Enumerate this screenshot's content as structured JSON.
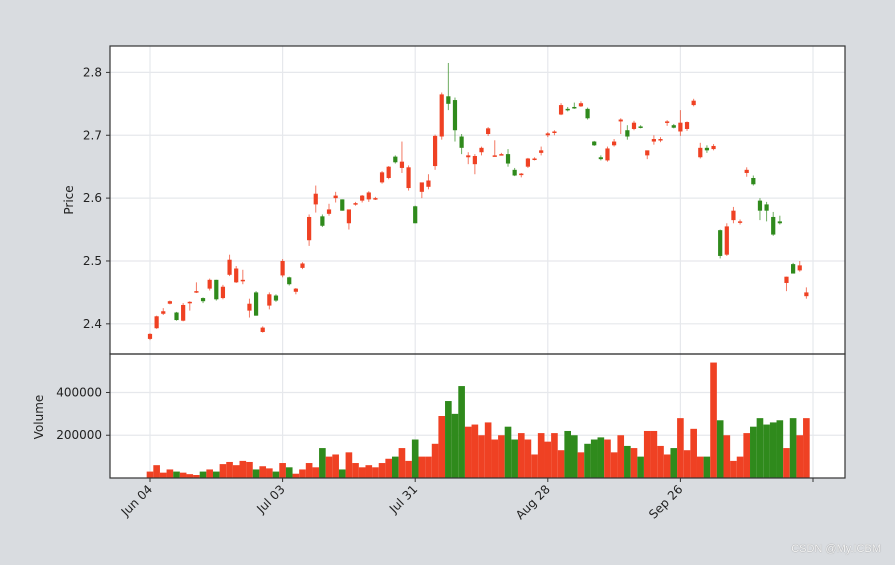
{
  "watermark": "CSDN @My.ICBM",
  "chart_data": {
    "type": "candlestick",
    "title": "",
    "panels": [
      {
        "name": "price",
        "ylabel": "Price",
        "yticks": [
          2.4,
          2.5,
          2.6,
          2.7,
          2.8
        ],
        "ylim": [
          2.352,
          2.842
        ]
      },
      {
        "name": "volume",
        "ylabel": "Volume",
        "yticks": [
          200000,
          400000
        ],
        "yticklabels": [
          "200000",
          "400000"
        ],
        "ylim": [
          0,
          580000
        ]
      }
    ],
    "xtick_labels": [
      "Jun 04",
      "Jul 03",
      "Jul 31",
      "Aug 28",
      "Sep 26"
    ],
    "xtick_index": [
      0,
      20,
      40,
      60,
      80,
      100
    ],
    "colors": {
      "up": "#ef4123",
      "down": "#2f8a1c"
    },
    "grid": true,
    "candles": [
      [
        2.376,
        2.385,
        2.374,
        2.384,
        30000
      ],
      [
        2.393,
        2.413,
        2.392,
        2.412,
        60000
      ],
      [
        2.416,
        2.425,
        2.414,
        2.42,
        25000
      ],
      [
        2.432,
        2.437,
        2.431,
        2.436,
        40000
      ],
      [
        2.418,
        2.419,
        2.405,
        2.406,
        30000
      ],
      [
        2.405,
        2.433,
        2.404,
        2.43,
        25000
      ],
      [
        2.434,
        2.436,
        2.421,
        2.435,
        18000
      ],
      [
        2.45,
        2.466,
        2.449,
        2.452,
        14000
      ],
      [
        2.441,
        2.442,
        2.433,
        2.436,
        30000
      ],
      [
        2.456,
        2.472,
        2.453,
        2.47,
        40000
      ],
      [
        2.47,
        2.47,
        2.437,
        2.439,
        30000
      ],
      [
        2.441,
        2.462,
        2.439,
        2.459,
        65000
      ],
      [
        2.478,
        2.51,
        2.476,
        2.502,
        75000
      ],
      [
        2.466,
        2.492,
        2.465,
        2.488,
        60000
      ],
      [
        2.47,
        2.486,
        2.463,
        2.47,
        80000
      ],
      [
        2.421,
        2.44,
        2.41,
        2.432,
        75000
      ],
      [
        2.45,
        2.452,
        2.413,
        2.413,
        40000
      ],
      [
        2.387,
        2.396,
        2.386,
        2.394,
        55000
      ],
      [
        2.429,
        2.45,
        2.423,
        2.447,
        45000
      ],
      [
        2.445,
        2.447,
        2.435,
        2.437,
        30000
      ],
      [
        2.477,
        2.503,
        2.474,
        2.5,
        70000
      ],
      [
        2.474,
        2.475,
        2.461,
        2.463,
        50000
      ],
      [
        2.451,
        2.457,
        2.447,
        2.456,
        20000
      ],
      [
        2.489,
        2.498,
        2.487,
        2.496,
        40000
      ],
      [
        2.533,
        2.574,
        2.524,
        2.57,
        70000
      ],
      [
        2.59,
        2.62,
        2.577,
        2.607,
        50000
      ],
      [
        2.571,
        2.574,
        2.554,
        2.556,
        140000
      ],
      [
        2.575,
        2.591,
        2.572,
        2.582,
        100000
      ],
      [
        2.6,
        2.61,
        2.593,
        2.604,
        110000
      ],
      [
        2.598,
        2.598,
        2.58,
        2.58,
        40000
      ],
      [
        2.56,
        2.562,
        2.55,
        2.582,
        120000
      ],
      [
        2.591,
        2.594,
        2.588,
        2.592,
        70000
      ],
      [
        2.596,
        2.605,
        2.593,
        2.604,
        50000
      ],
      [
        2.598,
        2.611,
        2.594,
        2.609,
        60000
      ],
      [
        2.598,
        2.602,
        2.597,
        2.6,
        50000
      ],
      [
        2.625,
        2.643,
        2.623,
        2.641,
        70000
      ],
      [
        2.632,
        2.651,
        2.63,
        2.65,
        90000
      ],
      [
        2.666,
        2.668,
        2.655,
        2.657,
        100000
      ],
      [
        2.648,
        2.69,
        2.64,
        2.658,
        140000
      ],
      [
        2.616,
        2.652,
        2.612,
        2.649,
        80000
      ],
      [
        2.587,
        2.588,
        2.56,
        2.56,
        180000
      ],
      [
        2.61,
        2.618,
        2.6,
        2.625,
        100000
      ],
      [
        2.618,
        2.638,
        2.614,
        2.628,
        100000
      ],
      [
        2.651,
        2.701,
        2.645,
        2.699,
        160000
      ],
      [
        2.698,
        2.768,
        2.693,
        2.765,
        290000
      ],
      [
        2.762,
        2.815,
        2.74,
        2.75,
        360000
      ],
      [
        2.756,
        2.76,
        2.69,
        2.708,
        300000
      ],
      [
        2.698,
        2.702,
        2.67,
        2.68,
        430000
      ],
      [
        2.665,
        2.673,
        2.654,
        2.668,
        240000
      ],
      [
        2.654,
        2.67,
        2.638,
        2.667,
        250000
      ],
      [
        2.673,
        2.682,
        2.668,
        2.68,
        200000
      ],
      [
        2.702,
        2.713,
        2.699,
        2.711,
        260000
      ],
      [
        2.667,
        2.692,
        2.666,
        2.668,
        180000
      ],
      [
        2.67,
        2.672,
        2.668,
        2.67,
        200000
      ],
      [
        2.67,
        2.678,
        2.65,
        2.655,
        240000
      ],
      [
        2.645,
        2.648,
        2.635,
        2.636,
        180000
      ],
      [
        2.637,
        2.64,
        2.633,
        2.639,
        210000
      ],
      [
        2.65,
        2.664,
        2.648,
        2.663,
        180000
      ],
      [
        2.662,
        2.665,
        2.66,
        2.663,
        110000
      ],
      [
        2.672,
        2.682,
        2.668,
        2.676,
        210000
      ],
      [
        2.7,
        2.705,
        2.697,
        2.703,
        170000
      ],
      [
        2.705,
        2.708,
        2.7,
        2.706,
        210000
      ],
      [
        2.733,
        2.751,
        2.732,
        2.748,
        130000
      ],
      [
        2.742,
        2.745,
        2.738,
        2.741,
        220000
      ],
      [
        2.745,
        2.752,
        2.742,
        2.744,
        200000
      ],
      [
        2.746,
        2.754,
        2.745,
        2.751,
        120000
      ],
      [
        2.742,
        2.744,
        2.725,
        2.727,
        160000
      ],
      [
        2.69,
        2.691,
        2.683,
        2.684,
        180000
      ],
      [
        2.665,
        2.668,
        2.66,
        2.662,
        190000
      ],
      [
        2.66,
        2.682,
        2.658,
        2.679,
        180000
      ],
      [
        2.684,
        2.694,
        2.682,
        2.69,
        120000
      ],
      [
        2.722,
        2.727,
        2.702,
        2.725,
        200000
      ],
      [
        2.708,
        2.716,
        2.693,
        2.698,
        150000
      ],
      [
        2.71,
        2.723,
        2.708,
        2.72,
        140000
      ],
      [
        2.714,
        2.716,
        2.711,
        2.713,
        100000
      ],
      [
        2.668,
        2.675,
        2.662,
        2.676,
        220000
      ],
      [
        2.69,
        2.7,
        2.685,
        2.694,
        220000
      ],
      [
        2.693,
        2.697,
        2.689,
        2.694,
        150000
      ],
      [
        2.72,
        2.724,
        2.715,
        2.722,
        110000
      ],
      [
        2.716,
        2.718,
        2.711,
        2.712,
        140000
      ],
      [
        2.706,
        2.74,
        2.699,
        2.72,
        280000
      ],
      [
        2.71,
        2.722,
        2.707,
        2.721,
        130000
      ],
      [
        2.748,
        2.758,
        2.746,
        2.755,
        230000
      ],
      [
        2.665,
        2.688,
        2.663,
        2.68,
        100000
      ],
      [
        2.68,
        2.684,
        2.672,
        2.676,
        100000
      ],
      [
        2.678,
        2.686,
        2.676,
        2.683,
        540000
      ],
      [
        2.549,
        2.55,
        2.504,
        2.508,
        270000
      ],
      [
        2.51,
        2.56,
        2.508,
        2.555,
        200000
      ],
      [
        2.565,
        2.586,
        2.56,
        2.58,
        80000
      ],
      [
        2.563,
        2.566,
        2.558,
        2.563,
        100000
      ],
      [
        2.64,
        2.649,
        2.634,
        2.645,
        210000
      ],
      [
        2.632,
        2.636,
        2.62,
        2.622,
        240000
      ],
      [
        2.596,
        2.6,
        2.565,
        2.58,
        280000
      ],
      [
        2.59,
        2.594,
        2.563,
        2.58,
        250000
      ],
      [
        2.57,
        2.578,
        2.54,
        2.542,
        260000
      ],
      [
        2.563,
        2.572,
        2.558,
        2.56,
        270000
      ],
      [
        2.465,
        2.475,
        2.452,
        2.475,
        140000
      ],
      [
        2.495,
        2.497,
        2.48,
        2.48,
        280000
      ],
      [
        2.485,
        2.5,
        2.483,
        2.493,
        200000
      ],
      [
        2.444,
        2.458,
        2.44,
        2.45,
        280000
      ]
    ]
  }
}
